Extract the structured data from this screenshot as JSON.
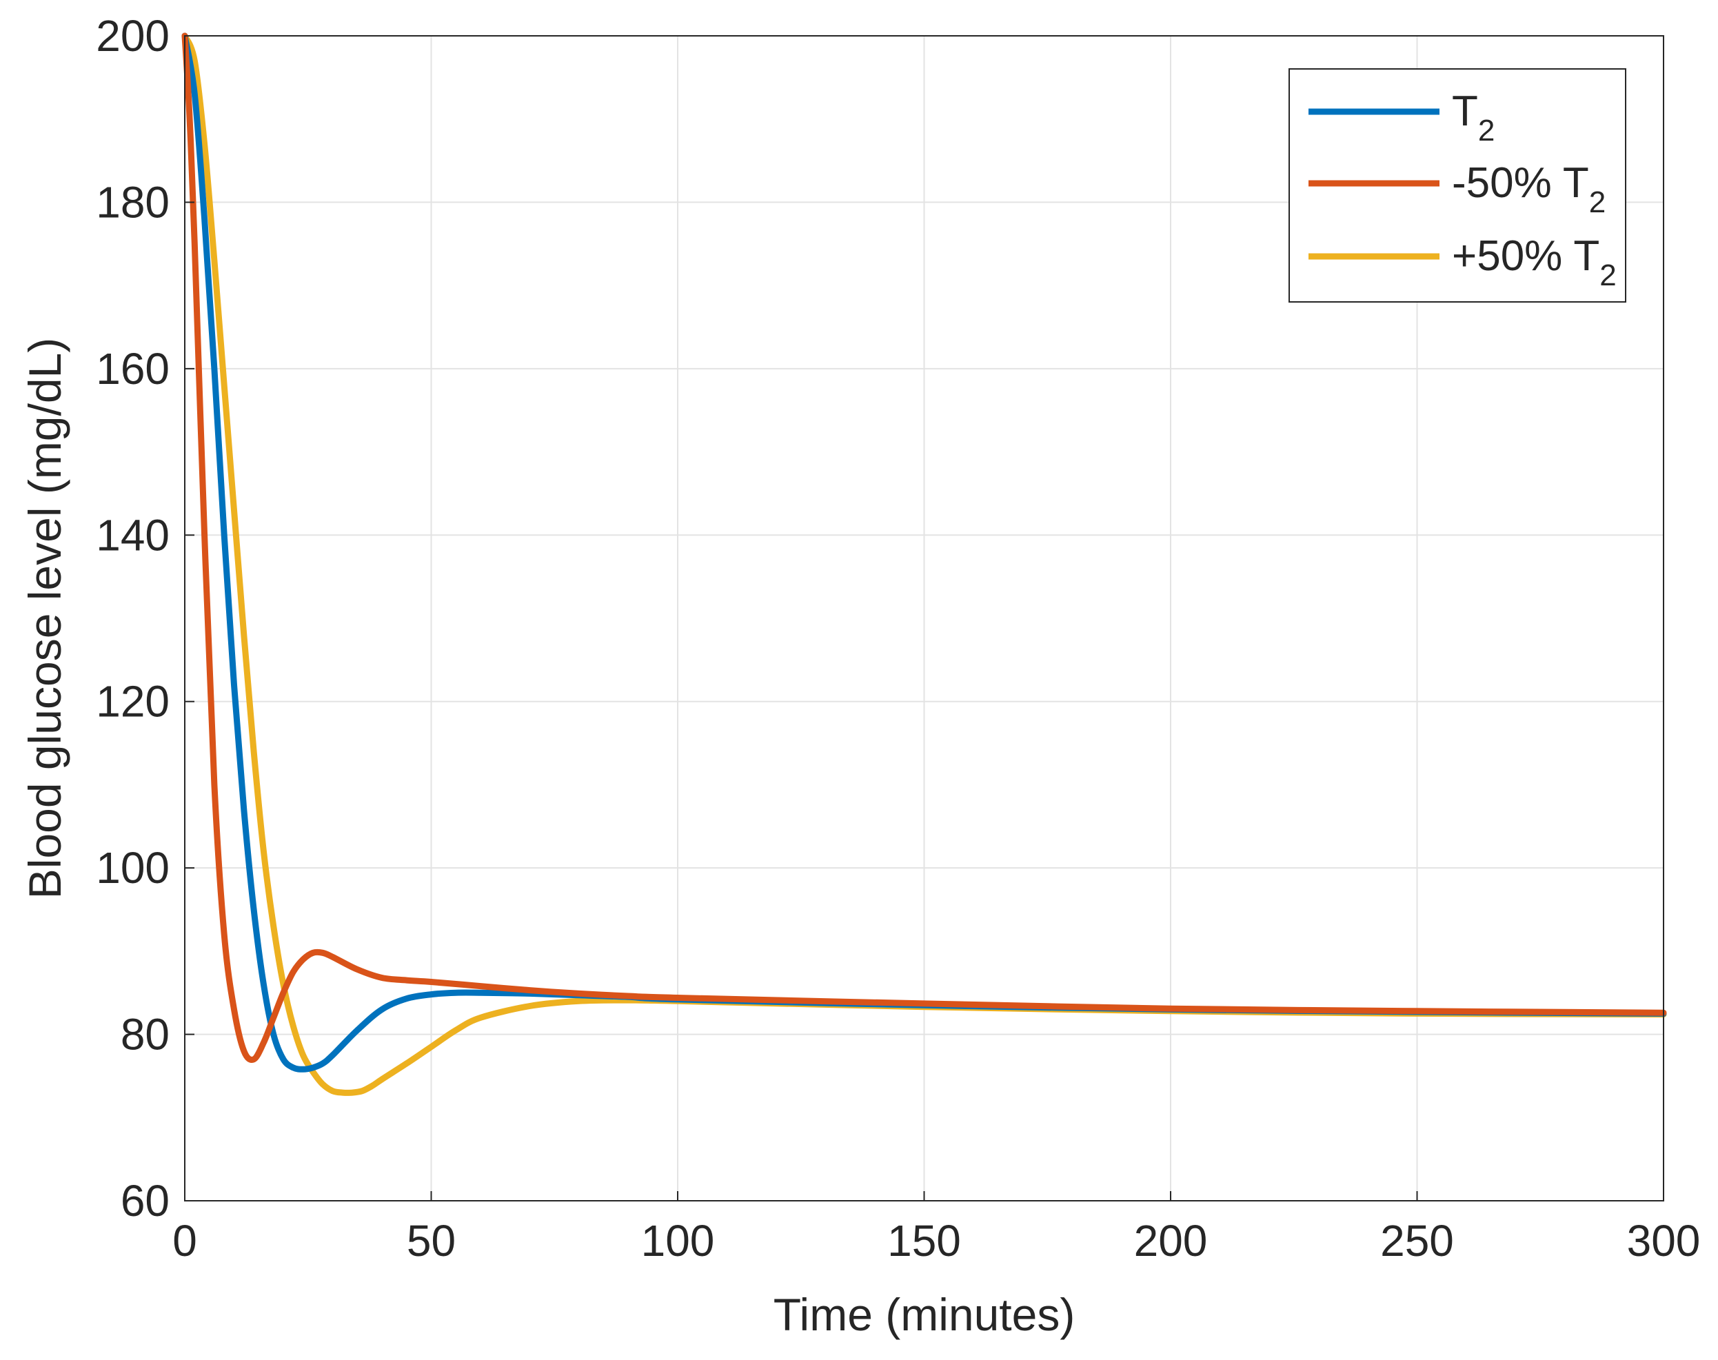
{
  "chart_data": {
    "type": "line",
    "xlabel": "Time (minutes)",
    "ylabel": "Blood glucose level (mg/dL)",
    "xlim": [
      0,
      300
    ],
    "ylim": [
      60,
      200
    ],
    "x_ticks": [
      0,
      50,
      100,
      150,
      200,
      250,
      300
    ],
    "y_ticks": [
      60,
      80,
      100,
      120,
      140,
      160,
      180,
      200
    ],
    "grid": true,
    "legend_position": "top-right",
    "series": [
      {
        "name": "T",
        "name_sub": "2",
        "color": "#0072BD",
        "x": [
          0,
          2,
          4,
          6,
          8,
          10,
          12,
          14,
          16,
          18,
          20,
          22,
          24,
          26,
          28,
          30,
          35,
          40,
          45,
          50,
          55,
          60,
          70,
          80,
          90,
          100,
          150,
          200,
          250,
          300
        ],
        "y": [
          200,
          193,
          178,
          160,
          140,
          122,
          107,
          95,
          86,
          80,
          77,
          76,
          75.8,
          76,
          76.5,
          77.5,
          80.5,
          83,
          84.3,
          84.8,
          85,
          85,
          84.9,
          84.7,
          84.5,
          84.2,
          83.5,
          83,
          82.7,
          82.5
        ]
      },
      {
        "name": "-50% T",
        "name_sub": "2",
        "color": "#D95319",
        "x": [
          0,
          1,
          2,
          4,
          6,
          8,
          10,
          12,
          14,
          16,
          18,
          20,
          22,
          24,
          26,
          28,
          30,
          35,
          40,
          45,
          50,
          60,
          70,
          80,
          90,
          100,
          150,
          200,
          250,
          300
        ],
        "y": [
          200,
          190,
          175,
          140,
          110,
          92,
          83,
          78,
          77,
          79,
          82,
          85,
          87.5,
          89,
          89.8,
          89.8,
          89.3,
          87.8,
          86.8,
          86.5,
          86.3,
          85.8,
          85.3,
          84.9,
          84.6,
          84.4,
          83.7,
          83.1,
          82.8,
          82.6
        ]
      },
      {
        "name": "+50% T",
        "name_sub": "2",
        "color": "#EDB120",
        "x": [
          0,
          2,
          4,
          6,
          8,
          10,
          12,
          14,
          16,
          18,
          20,
          22,
          24,
          26,
          28,
          30,
          32,
          34,
          36,
          38,
          40,
          45,
          50,
          55,
          60,
          70,
          80,
          90,
          100,
          150,
          200,
          250,
          300
        ],
        "y": [
          200,
          197,
          187,
          173,
          158,
          143,
          128,
          114,
          102,
          93,
          86,
          81,
          77.5,
          75.5,
          74,
          73.2,
          73,
          73,
          73.2,
          73.8,
          74.6,
          76.5,
          78.5,
          80.5,
          82,
          83.4,
          84,
          84.1,
          84,
          83.3,
          82.8,
          82.5,
          82.4
        ]
      }
    ]
  }
}
